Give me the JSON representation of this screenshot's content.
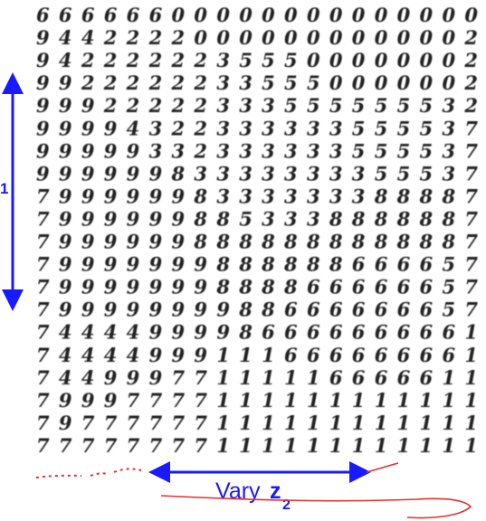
{
  "grid": {
    "rows": [
      "66666600000000000000",
      "94422220000000000002",
      "94222222355500000002",
      "99222222335550000002",
      "99922222333555555532",
      "99994322333333555537",
      "99999332333333555537",
      "99999983333333355537",
      "79999998333333388887",
      "79999998853338888887",
      "79999998888888888887",
      "79999999888888666657",
      "79999999888866666657",
      "79999999988666666657",
      "74444999986666666661",
      "74444999111666666661",
      "74499977111116666611",
      "79997777111111111111",
      "79777777111111111111",
      "77777777111111111111"
    ]
  },
  "left_label": "1",
  "bottom_label": {
    "word": "Vary",
    "variable": "z",
    "subscript": "2"
  }
}
